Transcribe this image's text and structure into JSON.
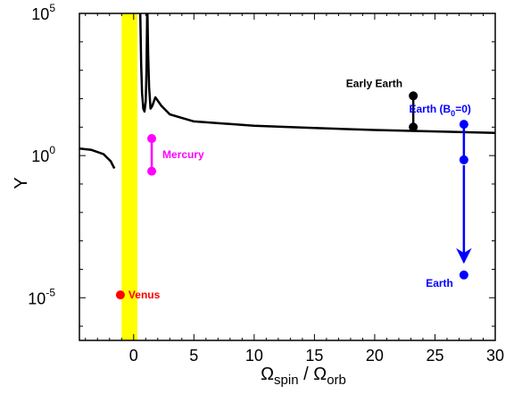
{
  "chart_data": {
    "type": "line",
    "title": "",
    "xlabel": {
      "base": "Ω",
      "sub1": "spin",
      "mid": " / Ω",
      "sub2": "orb"
    },
    "ylabel": "Y",
    "xlim": [
      -4.5,
      30
    ],
    "ylim_log10": [
      -6.5,
      5
    ],
    "yscale": "log",
    "grid": false,
    "legend": "none",
    "x_ticks": [
      {
        "value": 0,
        "label": "0"
      },
      {
        "value": 5,
        "label": "5"
      },
      {
        "value": 10,
        "label": "10"
      },
      {
        "value": 15,
        "label": "15"
      },
      {
        "value": 20,
        "label": "20"
      },
      {
        "value": 25,
        "label": "25"
      },
      {
        "value": 30,
        "label": "30"
      }
    ],
    "y_ticks": [
      {
        "log10": 5,
        "base": "10",
        "exp": "5"
      },
      {
        "log10": 0,
        "base": "10",
        "exp": "0"
      },
      {
        "log10": -5,
        "base": "10",
        "exp": "-5"
      }
    ],
    "highlight_band": {
      "x0": -1.0,
      "x1": 0.3,
      "color": "#ffff00"
    },
    "curve": {
      "color": "#000000",
      "left_segment": [
        [
          -4.5,
          0.25
        ],
        [
          -3.5,
          0.2
        ],
        [
          -2.5,
          0.05
        ],
        [
          -1.9,
          -0.2
        ],
        [
          -1.6,
          -0.45
        ]
      ],
      "right_segment": [
        [
          1.15,
          5
        ],
        [
          1.2,
          3.6
        ],
        [
          1.28,
          2.4
        ],
        [
          1.4,
          1.65
        ],
        [
          1.55,
          1.75
        ],
        [
          1.8,
          2.05
        ],
        [
          2.3,
          1.75
        ],
        [
          3,
          1.45
        ],
        [
          5,
          1.2
        ],
        [
          10,
          1.05
        ],
        [
          15,
          0.97
        ],
        [
          20,
          0.9
        ],
        [
          25,
          0.85
        ],
        [
          30,
          0.8
        ]
      ],
      "spike_segment": [
        [
          0.55,
          5
        ],
        [
          0.62,
          3.2
        ],
        [
          0.7,
          2.2
        ],
        [
          0.8,
          1.65
        ],
        [
          0.9,
          1.55
        ],
        [
          1.0,
          1.9
        ],
        [
          1.07,
          3.0
        ],
        [
          1.12,
          5
        ]
      ]
    },
    "annotations": [
      {
        "label": "Early Earth",
        "color": "#000000",
        "x": 23.2,
        "points_log10": [
          2.1,
          1.0
        ],
        "arrow": false,
        "label_anchor": "end",
        "label_dx": -12,
        "label_dy": -10
      },
      {
        "label": "Mercury",
        "color": "#ff00ff",
        "x": 1.5,
        "points_log10": [
          0.6,
          -0.55
        ],
        "arrow": false,
        "label_anchor": "start",
        "label_dx": 12,
        "label_dy": 22
      },
      {
        "label": "Venus",
        "color": "#ff0000",
        "x": -1.1,
        "points_log10": [
          -4.9
        ],
        "arrow": false,
        "label_anchor": "start",
        "label_dx": 9,
        "label_dy": 4
      },
      {
        "label": "Earth",
        "color": "#0000ff",
        "x": 27.4,
        "points_log10": [
          1.1,
          -0.15
        ],
        "arrow": true,
        "arrow_to_log10": -3.75,
        "label_anchor": "end",
        "label_dx": -12,
        "label_dy": -8
      },
      {
        "label": "Earth",
        "color": "#0000ff",
        "x": 27.4,
        "points_log10": [
          -4.2
        ],
        "arrow": false,
        "label_anchor": "end",
        "label_dx": -12,
        "label_dy": 13
      }
    ],
    "earth_b0_label": {
      "prefix": "Earth (B",
      "sub": "0",
      "suffix": "=0)"
    }
  }
}
